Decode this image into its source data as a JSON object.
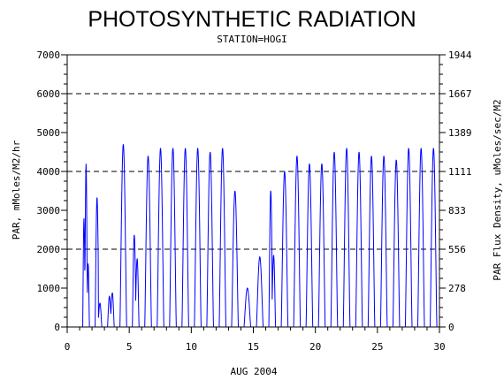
{
  "chart_data": {
    "type": "line",
    "title": "PHOTOSYNTHETIC RADIATION",
    "subtitle": "STATION=HOGI",
    "xlabel": "AUG 2004",
    "ylabel": "PAR, mMoles/M2/hr",
    "y2label": "PAR Flux Density, uMoles/sec/M2",
    "xlim": [
      0,
      30
    ],
    "ylim": [
      0,
      7000
    ],
    "x_ticks": [
      "0",
      "5",
      "10",
      "15",
      "20",
      "25",
      "30"
    ],
    "y_ticks": [
      "0",
      "1000",
      "2000",
      "3000",
      "4000",
      "5000",
      "6000",
      "7000"
    ],
    "y2_ticks": [
      "0",
      "278",
      "556",
      "833",
      "1111",
      "1389",
      "1667",
      "1944"
    ],
    "reference_lines": [
      2000,
      4000,
      6000
    ],
    "grid": false,
    "legend": "none",
    "series_color": "#0000ff",
    "daily_peaks": [
      {
        "day": 1,
        "peaks": [
          3600,
          4200,
          2100
        ]
      },
      {
        "day": 2,
        "peaks": [
          3800,
          700
        ]
      },
      {
        "day": 3,
        "peaks": [
          900,
          1000
        ]
      },
      {
        "day": 4,
        "peaks": [
          4700
        ]
      },
      {
        "day": 5,
        "peaks": [
          2700,
          2000
        ]
      },
      {
        "day": 6,
        "peaks": [
          4400
        ]
      },
      {
        "day": 7,
        "peaks": [
          4600
        ]
      },
      {
        "day": 8,
        "peaks": [
          4600
        ]
      },
      {
        "day": 9,
        "peaks": [
          4600
        ]
      },
      {
        "day": 10,
        "peaks": [
          4600
        ]
      },
      {
        "day": 11,
        "peaks": [
          4500
        ]
      },
      {
        "day": 12,
        "peaks": [
          4600
        ]
      },
      {
        "day": 13,
        "peaks": [
          3500
        ]
      },
      {
        "day": 14,
        "peaks": [
          1000
        ]
      },
      {
        "day": 15,
        "peaks": [
          1800
        ]
      },
      {
        "day": 16,
        "peaks": [
          4000,
          2100
        ]
      },
      {
        "day": 17,
        "peaks": [
          4000
        ]
      },
      {
        "day": 18,
        "peaks": [
          4400
        ]
      },
      {
        "day": 19,
        "peaks": [
          4200
        ]
      },
      {
        "day": 20,
        "peaks": [
          4200
        ]
      },
      {
        "day": 21,
        "peaks": [
          4500
        ]
      },
      {
        "day": 22,
        "peaks": [
          4600
        ]
      },
      {
        "day": 23,
        "peaks": [
          4500
        ]
      },
      {
        "day": 24,
        "peaks": [
          4400
        ]
      },
      {
        "day": 25,
        "peaks": [
          4400
        ]
      },
      {
        "day": 26,
        "peaks": [
          4300
        ]
      },
      {
        "day": 27,
        "peaks": [
          4600
        ]
      },
      {
        "day": 28,
        "peaks": [
          4600
        ]
      },
      {
        "day": 29,
        "peaks": [
          4600
        ]
      }
    ]
  }
}
